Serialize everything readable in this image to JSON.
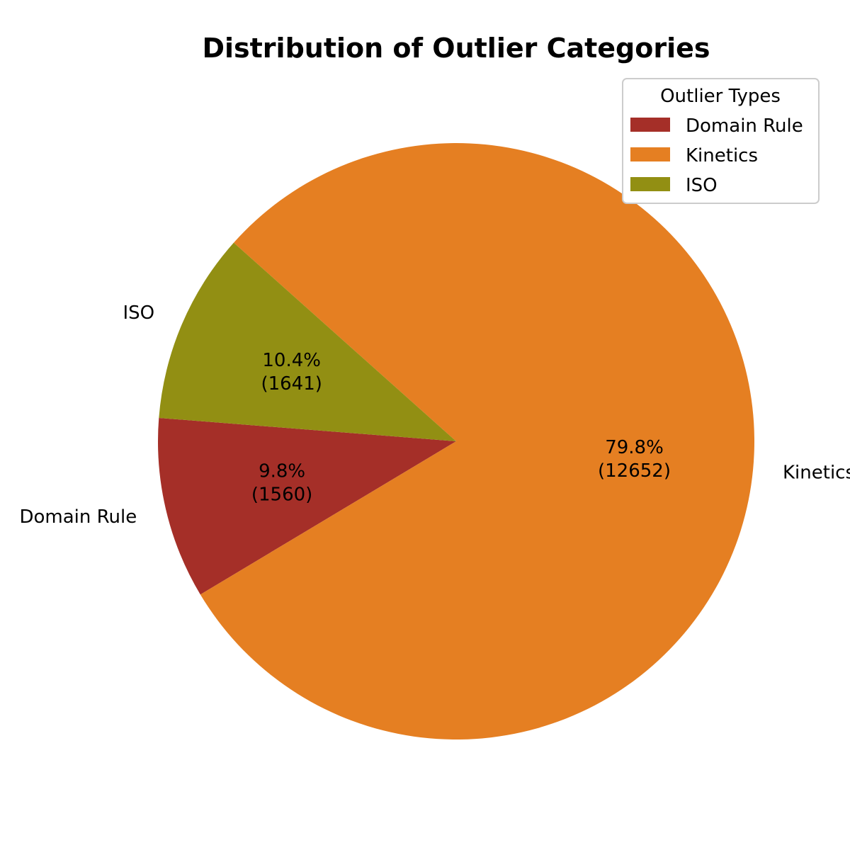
{
  "chart_data": {
    "type": "pie",
    "title": "Distribution of Outlier Categories",
    "categories": [
      "Domain Rule",
      "Kinetics",
      "ISO"
    ],
    "values": [
      1560,
      12652,
      1641
    ],
    "percent_labels": [
      "9.8%",
      "79.8%",
      "10.4%"
    ],
    "count_labels": [
      "(1560)",
      "(12652)",
      "(1641)"
    ],
    "colors": [
      "#a52f28",
      "#e57f22",
      "#928f13"
    ],
    "start_angle_deg": 175.5,
    "direction": "counterclockwise",
    "legend": {
      "title": "Outlier Types",
      "entries": [
        "Domain Rule",
        "Kinetics",
        "ISO"
      ],
      "placement": "top-right"
    }
  }
}
